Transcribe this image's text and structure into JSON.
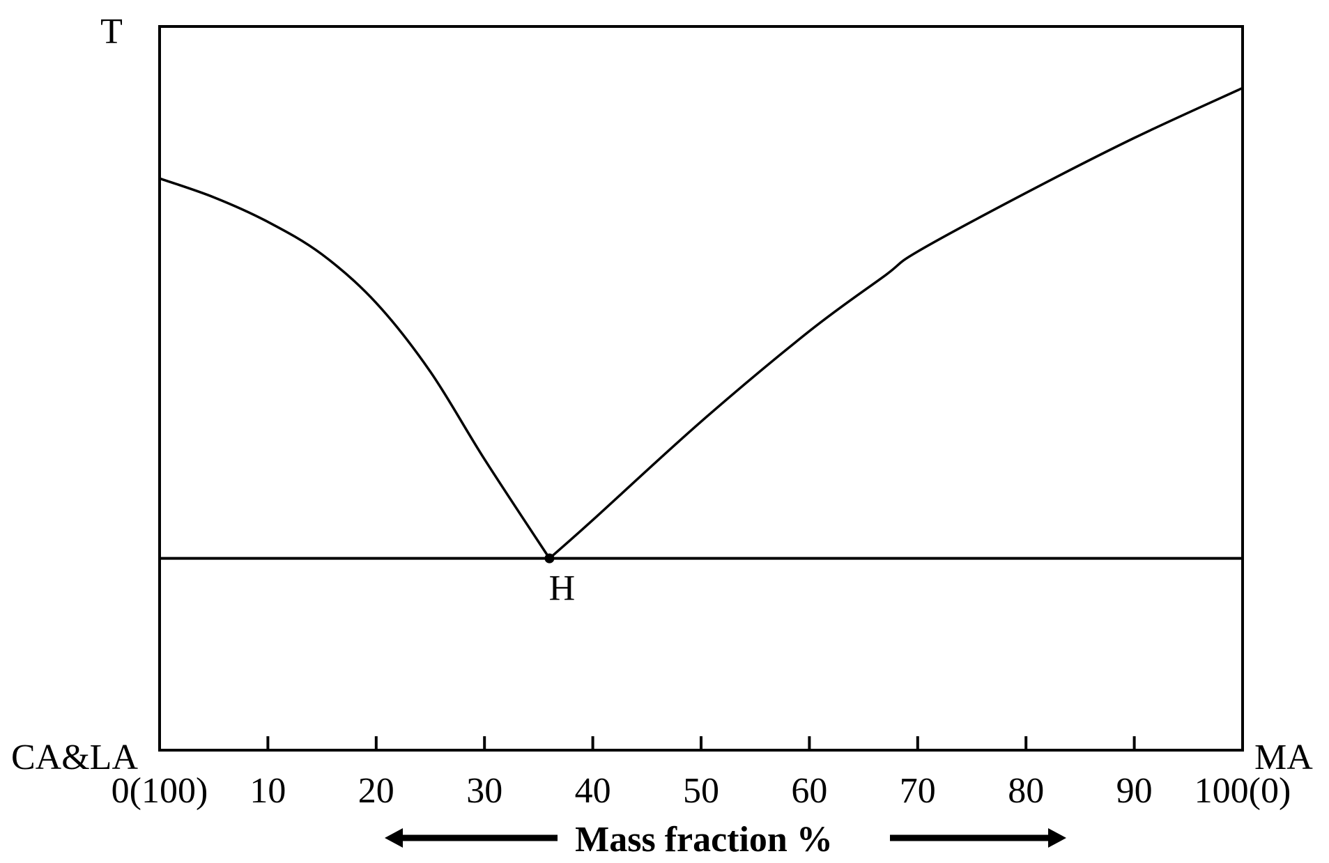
{
  "chart_data": {
    "type": "line",
    "title": "",
    "ylabel": "T",
    "xlabel": "Mass fraction  %",
    "left_component": "CA&LA",
    "right_component": "MA",
    "xlim": [
      0,
      100
    ],
    "ylim": [
      0,
      100
    ],
    "x_ticks": [
      0,
      10,
      20,
      30,
      40,
      50,
      60,
      70,
      80,
      90,
      100
    ],
    "x_tick_labels": [
      "0(100)",
      "10",
      "20",
      "30",
      "40",
      "50",
      "60",
      "70",
      "80",
      "90",
      "100(0)"
    ],
    "grid": false,
    "series": [
      {
        "x": [
          0,
          5,
          10,
          15,
          20,
          25,
          30,
          36
        ],
        "y": [
          79,
          76.4,
          73,
          68.5,
          61.8,
          52.3,
          40.2,
          26.5
        ]
      },
      {
        "x": [
          36,
          40,
          50,
          60,
          67,
          70,
          80,
          90,
          100
        ],
        "y": [
          26.5,
          31.8,
          45.4,
          57.9,
          65.6,
          68.9,
          77,
          84.6,
          91.5
        ]
      }
    ],
    "horizontal_line_y": 26.5,
    "annotations": [
      {
        "label": "H",
        "x": 36,
        "y": 26.5
      }
    ]
  }
}
